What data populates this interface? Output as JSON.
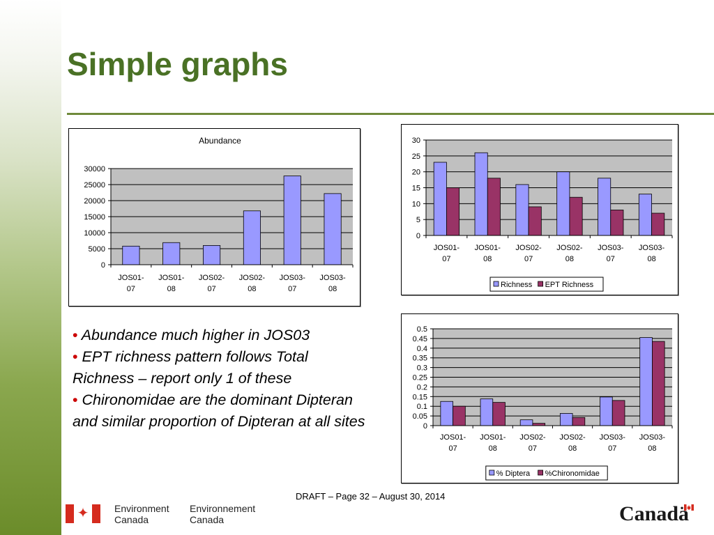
{
  "slide": {
    "title": "Simple graphs",
    "bullets": [
      {
        "bullet": "•",
        "text": "Abundance much higher in JOS03"
      },
      {
        "bullet": "•",
        "text": "EPT richness pattern follows Total Richness – report only 1 of these"
      },
      {
        "bullet": "•",
        "text": "Chironomidae are the dominant Dipteran and similar proportion of Dipteran at all sites"
      }
    ],
    "footer": "DRAFT – Page 32 – August 30, 2014",
    "logo_en_line1": "Environment",
    "logo_en_line2": "Canada",
    "logo_fr_line1": "Environnement",
    "logo_fr_line2": "Canada",
    "wordmark": "Canadä",
    "colors": {
      "title": "#4a7125",
      "bullet": "#cc0000",
      "series1": "#9999ff",
      "series2": "#993366",
      "plot_bg": "#c0c0c0"
    }
  },
  "chart_data": [
    {
      "type": "bar",
      "title": "Abundance",
      "categories": [
        [
          "JOS01-",
          "07"
        ],
        [
          "JOS01-",
          "08"
        ],
        [
          "JOS02-",
          "07"
        ],
        [
          "JOS02-",
          "08"
        ],
        [
          "JOS03-",
          "07"
        ],
        [
          "JOS03-",
          "08"
        ]
      ],
      "series": [
        {
          "values": [
            5800,
            6900,
            6000,
            16800,
            27700,
            22200
          ]
        }
      ],
      "ylim": [
        0,
        30000
      ],
      "yticks": [
        0,
        5000,
        10000,
        15000,
        20000,
        25000,
        30000
      ],
      "ytick_labels": [
        "0",
        "5000",
        "10000",
        "15000",
        "20000",
        "25000",
        "30000"
      ],
      "legend": "none",
      "grid": true
    },
    {
      "type": "bar",
      "categories": [
        [
          "JOS01-",
          "07"
        ],
        [
          "JOS01-",
          "08"
        ],
        [
          "JOS02-",
          "07"
        ],
        [
          "JOS02-",
          "08"
        ],
        [
          "JOS03-",
          "07"
        ],
        [
          "JOS03-",
          "08"
        ]
      ],
      "series": [
        {
          "name": "Richness",
          "values": [
            23,
            26,
            16,
            20,
            18,
            13
          ]
        },
        {
          "name": "EPT Richness",
          "values": [
            15,
            18,
            9,
            12,
            8,
            7
          ]
        }
      ],
      "ylim": [
        0,
        30
      ],
      "yticks": [
        0,
        5,
        10,
        15,
        20,
        25,
        30
      ],
      "ytick_labels": [
        "0",
        "5",
        "10",
        "15",
        "20",
        "25",
        "30"
      ],
      "legend": "bottom",
      "grid": true
    },
    {
      "type": "bar",
      "categories": [
        [
          "JOS01-",
          "07"
        ],
        [
          "JOS01-",
          "08"
        ],
        [
          "JOS02-",
          "07"
        ],
        [
          "JOS02-",
          "08"
        ],
        [
          "JOS03-",
          "07"
        ],
        [
          "JOS03-",
          "08"
        ]
      ],
      "series": [
        {
          "name": "% Diptera",
          "values": [
            0.125,
            0.138,
            0.03,
            0.063,
            0.148,
            0.455
          ]
        },
        {
          "name": "%Chironomidae",
          "values": [
            0.1,
            0.12,
            0.012,
            0.042,
            0.13,
            0.435
          ]
        }
      ],
      "ylim": [
        0,
        0.5
      ],
      "yticks": [
        0,
        0.05,
        0.1,
        0.15,
        0.2,
        0.25,
        0.3,
        0.35,
        0.4,
        0.45,
        0.5
      ],
      "ytick_labels": [
        "0",
        "0.05",
        "0.1",
        "0.15",
        "0.2",
        "0.25",
        "0.3",
        "0.35",
        "0.4",
        "0.45",
        "0.5"
      ],
      "legend": "bottom",
      "grid": true
    }
  ]
}
